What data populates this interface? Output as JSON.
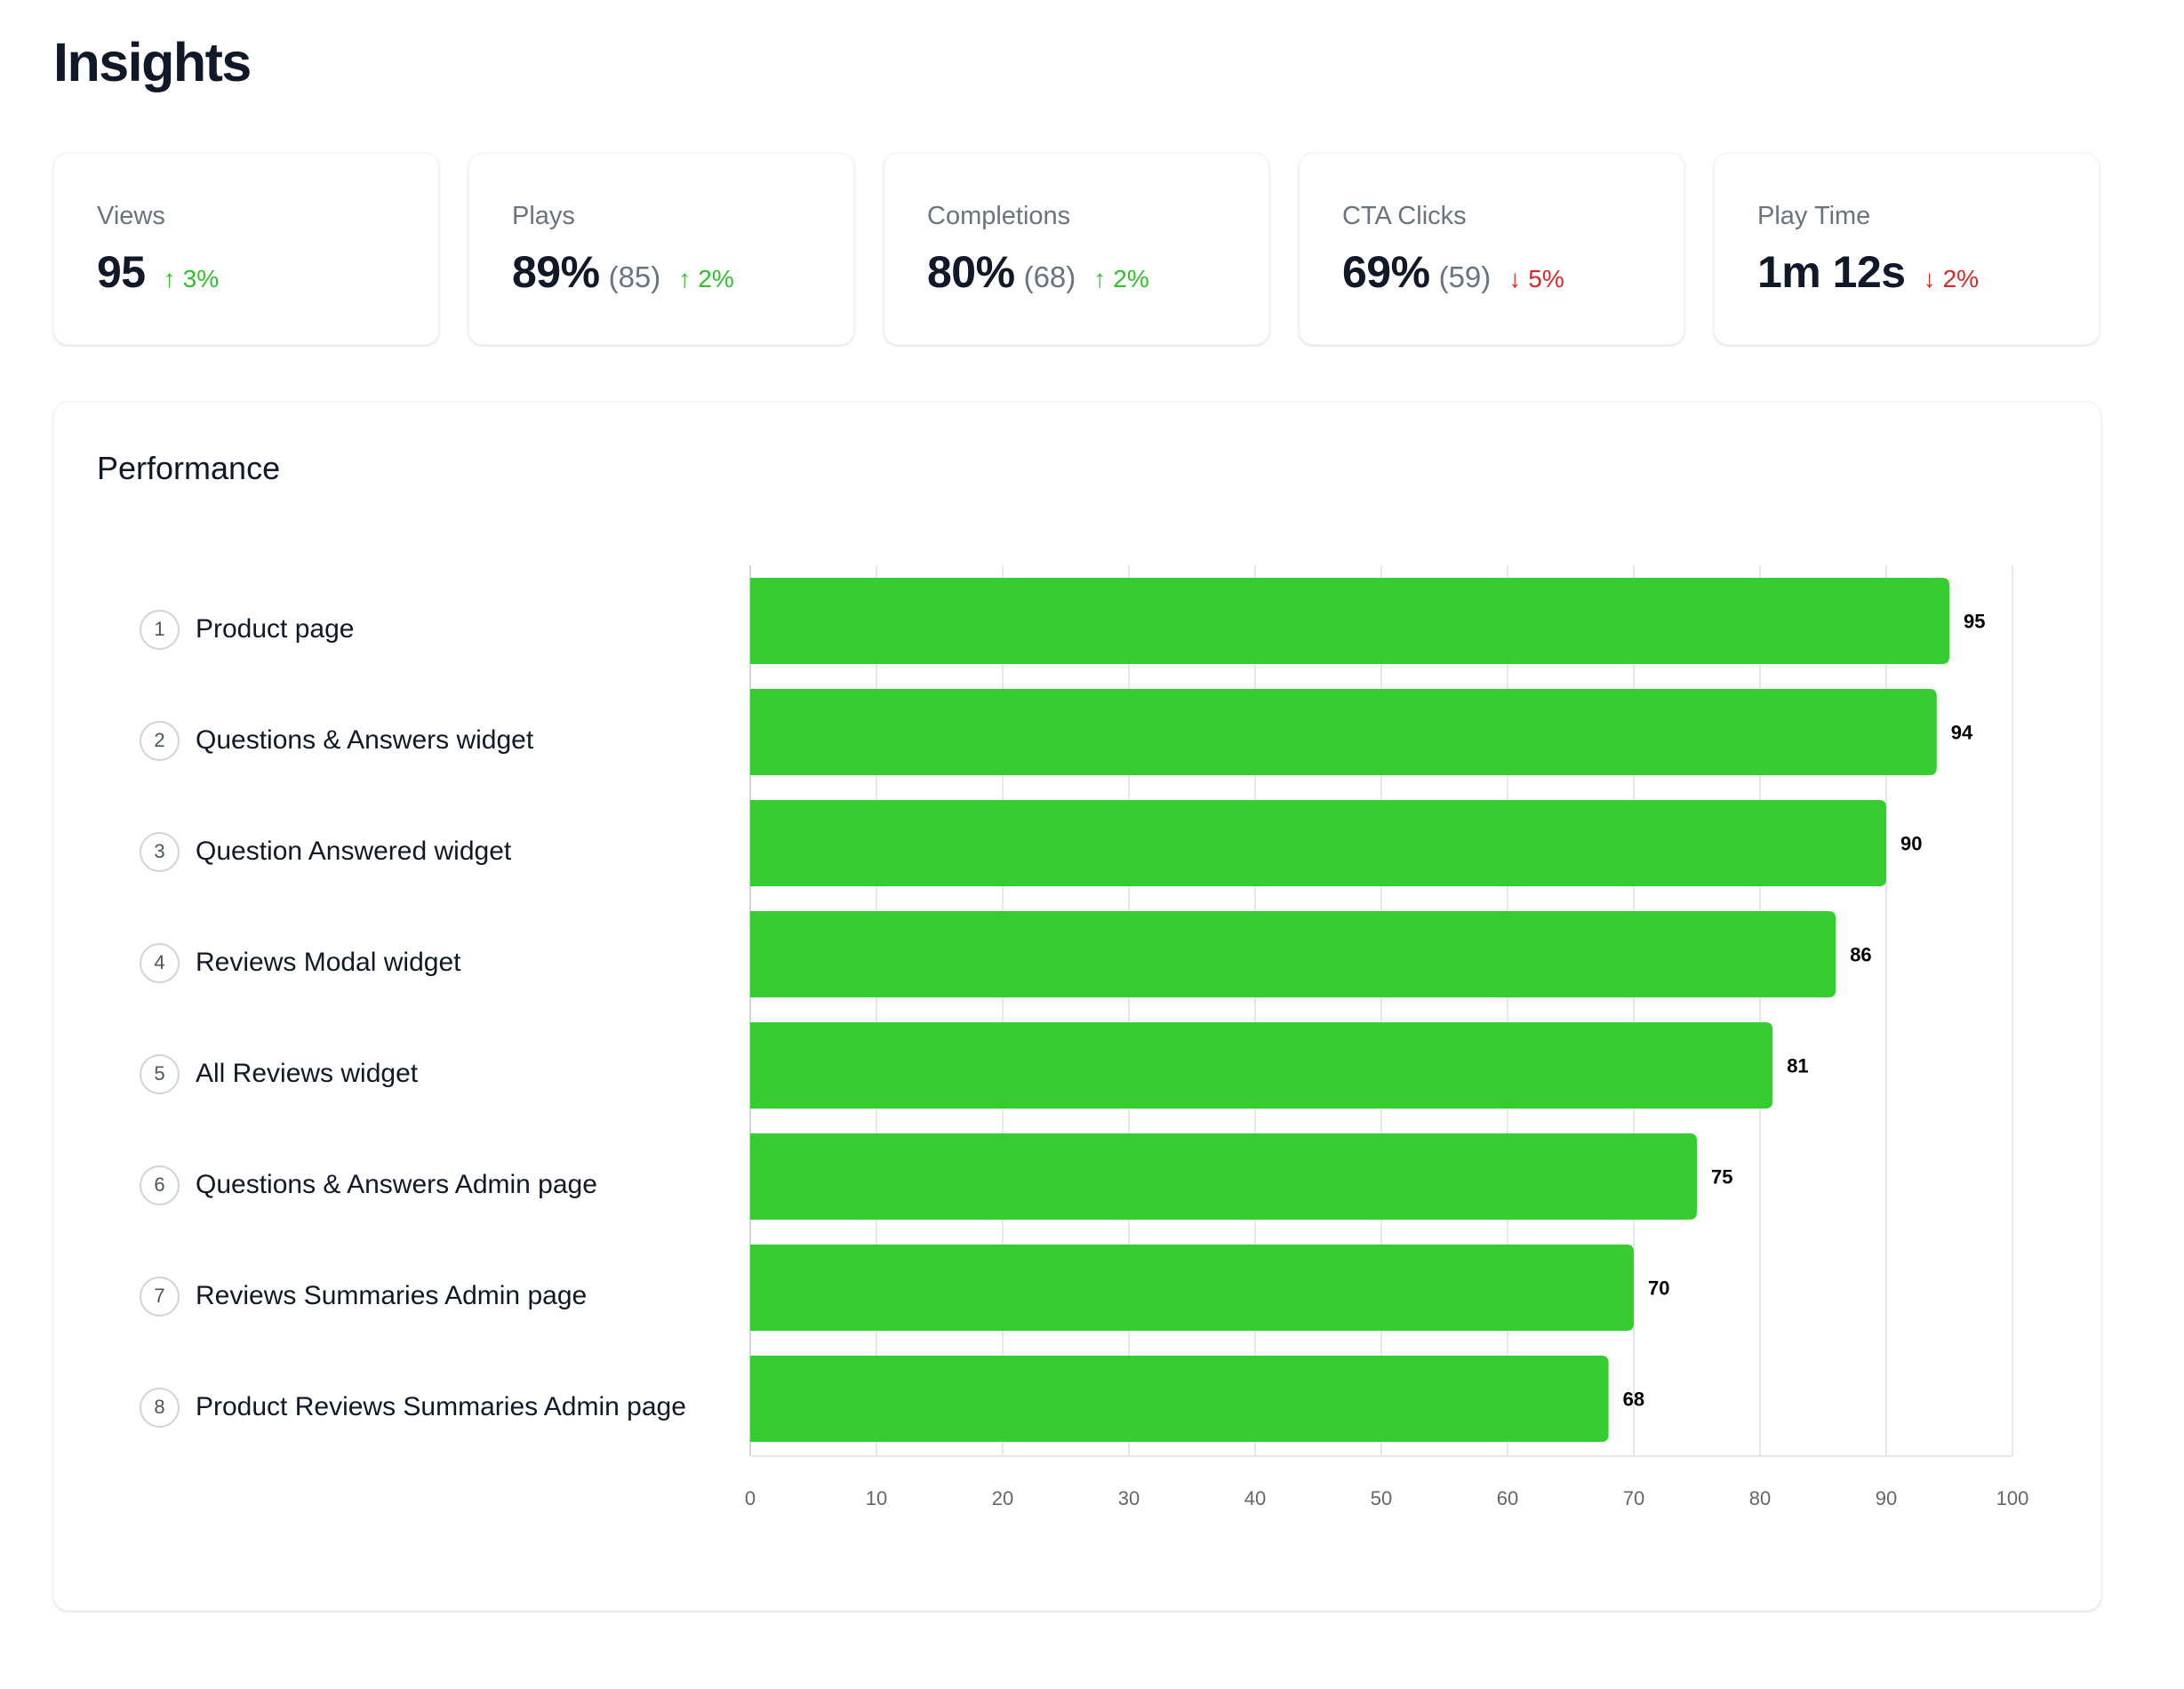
{
  "page": {
    "title": "Insights"
  },
  "stats": [
    {
      "label": "Views",
      "value": "95",
      "sub": "",
      "delta": "3%",
      "direction": "up",
      "arrow_icon": "arrow-up-icon"
    },
    {
      "label": "Plays",
      "value": "89%",
      "sub": "(85)",
      "delta": "2%",
      "direction": "up",
      "arrow_icon": "arrow-up-icon"
    },
    {
      "label": "Completions",
      "value": "80%",
      "sub": "(68)",
      "delta": "2%",
      "direction": "up",
      "arrow_icon": "arrow-up-icon"
    },
    {
      "label": "CTA Clicks",
      "value": "69%",
      "sub": "(59)",
      "delta": "5%",
      "direction": "down",
      "arrow_icon": "arrow-down-icon"
    },
    {
      "label": "Play Time",
      "value": "1m 12s",
      "sub": "",
      "delta": "2%",
      "direction": "down",
      "arrow_icon": "arrow-down-icon"
    }
  ],
  "colors": {
    "bar": "#37cd32",
    "up": "#2fc12c",
    "down": "#dc2626",
    "grid": "#e5e7eb",
    "axis": "#d1d5db"
  },
  "performance": {
    "title": "Performance"
  },
  "chart_data": {
    "type": "bar",
    "orientation": "horizontal",
    "title": "Performance",
    "categories": [
      "Product page",
      "Questions & Answers widget",
      "Question Answered widget",
      "Reviews Modal widget",
      "All Reviews widget",
      "Questions & Answers Admin page",
      "Reviews Summaries Admin page",
      "Product Reviews Summaries Admin page"
    ],
    "ranks": [
      "1",
      "2",
      "3",
      "4",
      "5",
      "6",
      "7",
      "8"
    ],
    "values": [
      95,
      94,
      90,
      86,
      81,
      75,
      70,
      68
    ],
    "xlabel": "",
    "ylabel": "",
    "xlim": [
      0,
      100
    ],
    "xticks": [
      0,
      10,
      20,
      30,
      40,
      50,
      60,
      70,
      80,
      90,
      100
    ],
    "grid": true,
    "data_labels": true,
    "legend": "none"
  }
}
